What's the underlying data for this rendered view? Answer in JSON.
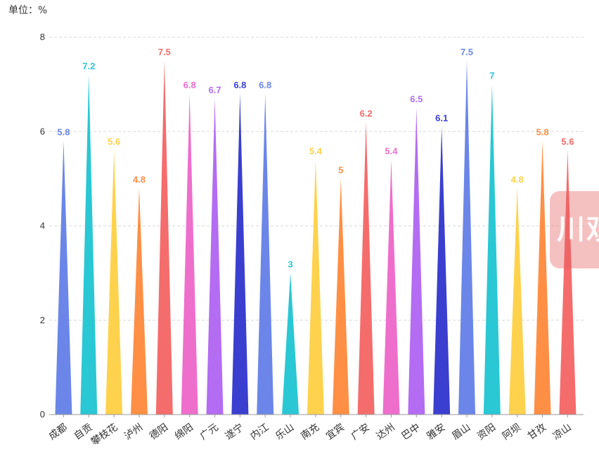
{
  "chart_data": {
    "type": "bar",
    "unit_label": "单位：%",
    "categories": [
      "成都",
      "自贡",
      "攀枝花",
      "泸州",
      "德阳",
      "绵阳",
      "广元",
      "遂宁",
      "内江",
      "乐山",
      "南充",
      "宜宾",
      "广安",
      "达州",
      "巴中",
      "雅安",
      "眉山",
      "资阳",
      "阿坝",
      "甘孜",
      "凉山"
    ],
    "values": [
      5.8,
      7.2,
      5.6,
      4.8,
      7.5,
      6.8,
      6.7,
      6.8,
      6.8,
      3,
      5.4,
      5,
      6.2,
      5.4,
      6.5,
      6.1,
      7.5,
      7,
      4.8,
      5.8,
      5.6
    ],
    "value_labels": [
      "5.8",
      "7.2",
      "5.6",
      "4.8",
      "7.5",
      "6.8",
      "6.7",
      "6.8",
      "6.8",
      "3",
      "5.4",
      "5",
      "6.2",
      "5.4",
      "6.5",
      "6.1",
      "7.5",
      "7",
      "4.8",
      "5.8",
      "5.6"
    ],
    "colors": [
      "#6b86e8",
      "#2ac7d4",
      "#ffd24d",
      "#ff8f45",
      "#f56c6c",
      "#ee6ecb",
      "#b36cf2",
      "#3a3fcf",
      "#6b86e8",
      "#2ac7d4",
      "#ffd24d",
      "#ff8f45",
      "#f56c6c",
      "#ee6ecb",
      "#b36cf2",
      "#3a3fcf",
      "#6b86e8",
      "#2ac7d4",
      "#ffd24d",
      "#ff8f45",
      "#f56c6c"
    ],
    "yticks": [
      "0",
      "2",
      "4",
      "6",
      "8"
    ],
    "ylim": [
      0,
      8
    ],
    "grid": true,
    "xlabel": "",
    "ylabel": ""
  },
  "watermark": {
    "text": "川观"
  }
}
